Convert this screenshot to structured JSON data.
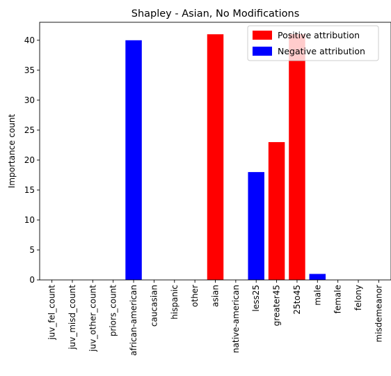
{
  "chart_data": {
    "type": "bar",
    "title": "Shapley - Asian, No Modifications",
    "xlabel": "",
    "ylabel": "Importance count",
    "ylim": [
      0,
      43
    ],
    "yticks": [
      0,
      5,
      10,
      15,
      20,
      25,
      30,
      35,
      40
    ],
    "grid": false,
    "legend_position": "top-right",
    "categories": [
      "juv_fel_count",
      "juv_misd_count",
      "juv_other_count",
      "priors_count",
      "african-american",
      "caucasian",
      "hispanic",
      "other",
      "asian",
      "native-american",
      "less25",
      "greater45",
      "25to45",
      "male",
      "female",
      "felony",
      "misdemeanor"
    ],
    "values": [
      0,
      0,
      0,
      0,
      40,
      0,
      0,
      0,
      41,
      0,
      18,
      23,
      41,
      1,
      0,
      0,
      0
    ],
    "attribution": [
      "none",
      "none",
      "none",
      "none",
      "negative",
      "none",
      "none",
      "none",
      "positive",
      "none",
      "negative",
      "positive",
      "positive",
      "negative",
      "none",
      "none",
      "none"
    ],
    "legend": [
      {
        "label": "Positive attribution",
        "key": "positive",
        "color": "#ff0000"
      },
      {
        "label": "Negative attribution",
        "key": "negative",
        "color": "#0000ff"
      }
    ],
    "colors": {
      "positive": "#ff0000",
      "negative": "#0000ff"
    }
  }
}
